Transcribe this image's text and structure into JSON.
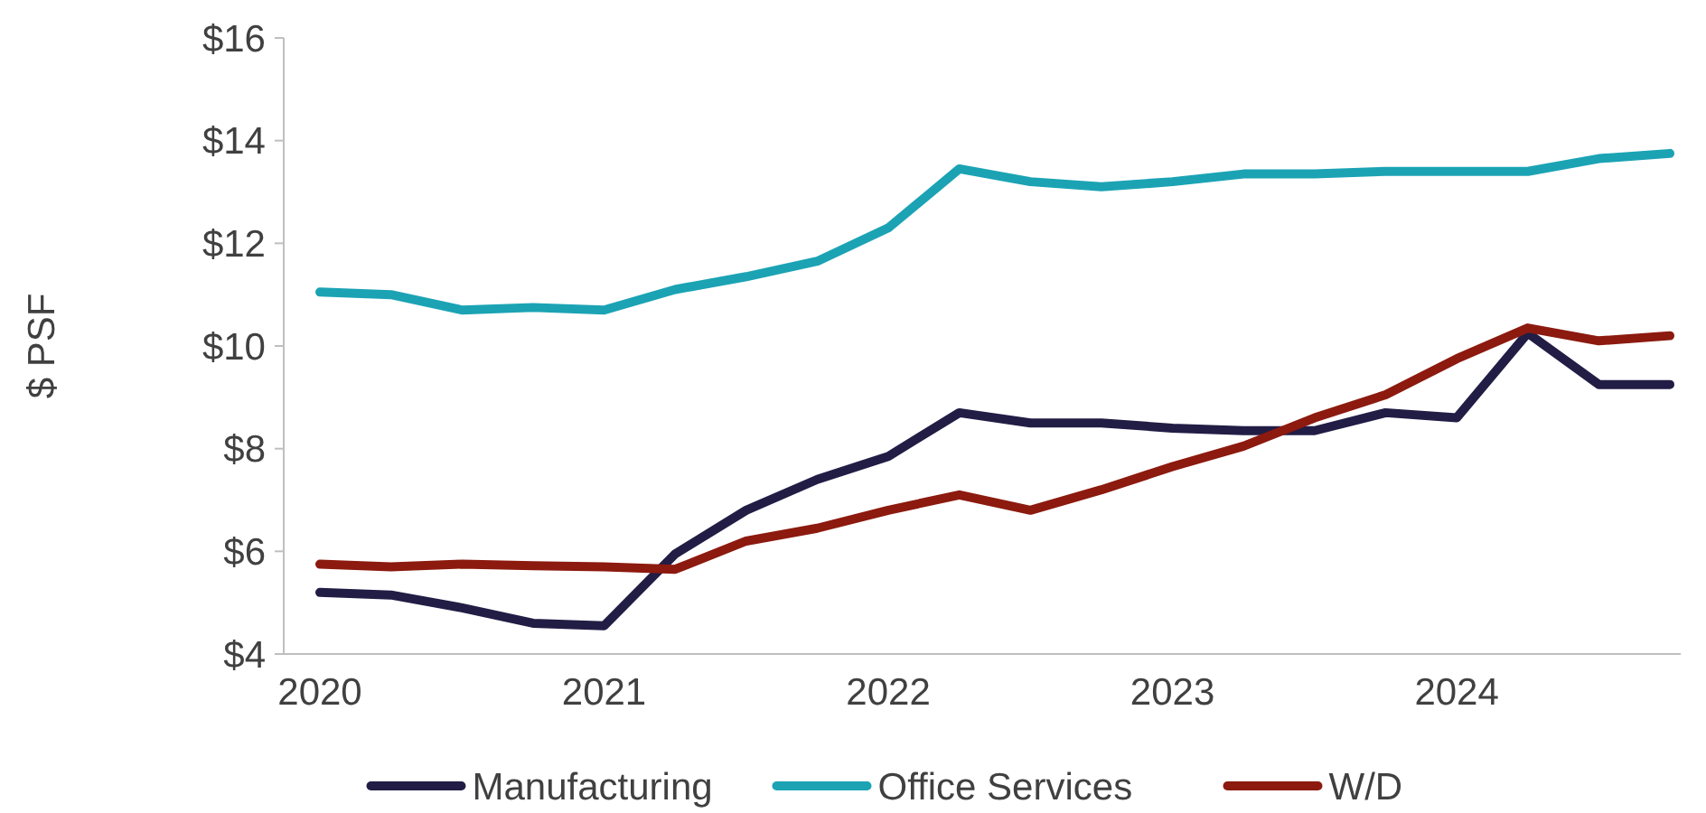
{
  "chart_data": {
    "type": "line",
    "ylabel": "$ PSF",
    "categories": [
      "2020",
      null,
      null,
      null,
      "2021",
      null,
      null,
      null,
      "2022",
      null,
      null,
      null,
      "2023",
      null,
      null,
      null,
      "2024",
      null,
      null,
      null
    ],
    "ylim": [
      4,
      16
    ],
    "yticks": [
      {
        "value": 4,
        "label": "$4"
      },
      {
        "value": 6,
        "label": "$6"
      },
      {
        "value": 8,
        "label": "$8"
      },
      {
        "value": 10,
        "label": "$10"
      },
      {
        "value": 12,
        "label": "$12"
      },
      {
        "value": 14,
        "label": "$14"
      },
      {
        "value": 16,
        "label": "$16"
      }
    ],
    "grid": false,
    "legend": "bottom",
    "marker": "none",
    "line_style": "solid",
    "series": [
      {
        "name": "Manufacturing",
        "color": "#221d45",
        "values": [
          5.2,
          5.15,
          4.9,
          4.6,
          4.55,
          5.95,
          6.8,
          7.4,
          7.85,
          8.7,
          8.5,
          8.5,
          8.4,
          8.35,
          8.35,
          8.7,
          8.6,
          10.25,
          9.25,
          9.25
        ]
      },
      {
        "name": "Office Services",
        "color": "#1ba3b4",
        "values": [
          11.05,
          11.0,
          10.7,
          10.75,
          10.7,
          11.1,
          11.35,
          11.65,
          12.3,
          13.45,
          13.2,
          13.1,
          13.2,
          13.35,
          13.35,
          13.4,
          13.4,
          13.4,
          13.65,
          13.75
        ]
      },
      {
        "name": "W/D",
        "color": "#8c1a0f",
        "values": [
          5.75,
          5.7,
          5.75,
          5.72,
          5.7,
          5.65,
          6.2,
          6.45,
          6.8,
          7.1,
          6.8,
          7.2,
          7.65,
          8.05,
          8.6,
          9.05,
          9.75,
          10.35,
          10.1,
          10.2
        ]
      }
    ]
  }
}
